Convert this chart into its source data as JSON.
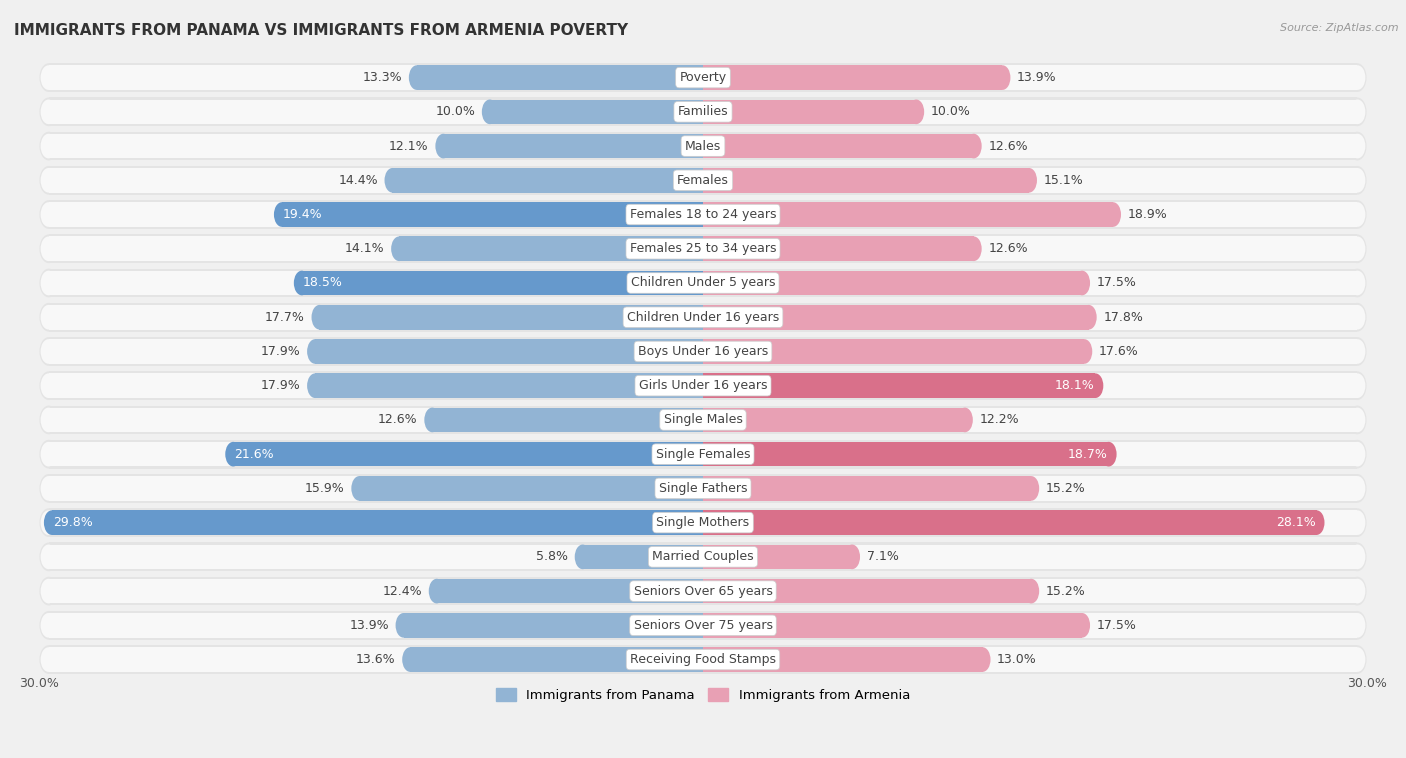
{
  "title": "IMMIGRANTS FROM PANAMA VS IMMIGRANTS FROM ARMENIA POVERTY",
  "source": "Source: ZipAtlas.com",
  "categories": [
    "Poverty",
    "Families",
    "Males",
    "Females",
    "Females 18 to 24 years",
    "Females 25 to 34 years",
    "Children Under 5 years",
    "Children Under 16 years",
    "Boys Under 16 years",
    "Girls Under 16 years",
    "Single Males",
    "Single Females",
    "Single Fathers",
    "Single Mothers",
    "Married Couples",
    "Seniors Over 65 years",
    "Seniors Over 75 years",
    "Receiving Food Stamps"
  ],
  "panama_values": [
    13.3,
    10.0,
    12.1,
    14.4,
    19.4,
    14.1,
    18.5,
    17.7,
    17.9,
    17.9,
    12.6,
    21.6,
    15.9,
    29.8,
    5.8,
    12.4,
    13.9,
    13.6
  ],
  "armenia_values": [
    13.9,
    10.0,
    12.6,
    15.1,
    18.9,
    12.6,
    17.5,
    17.8,
    17.6,
    18.1,
    12.2,
    18.7,
    15.2,
    28.1,
    7.1,
    15.2,
    17.5,
    13.0
  ],
  "panama_color": "#92b4d4",
  "armenia_color": "#e8a0b4",
  "panama_highlight_color": "#6699cc",
  "armenia_highlight_color": "#d9708a",
  "row_bg_color": "#e8e8e8",
  "background_color": "#f0f0f0",
  "axis_max": 30.0,
  "label_panama": "Immigrants from Panama",
  "label_armenia": "Immigrants from Armenia",
  "highlight_panama": [
    4,
    6,
    11,
    13
  ],
  "highlight_armenia": [
    9,
    11,
    13
  ],
  "value_label_fontsize": 9,
  "cat_label_fontsize": 9
}
